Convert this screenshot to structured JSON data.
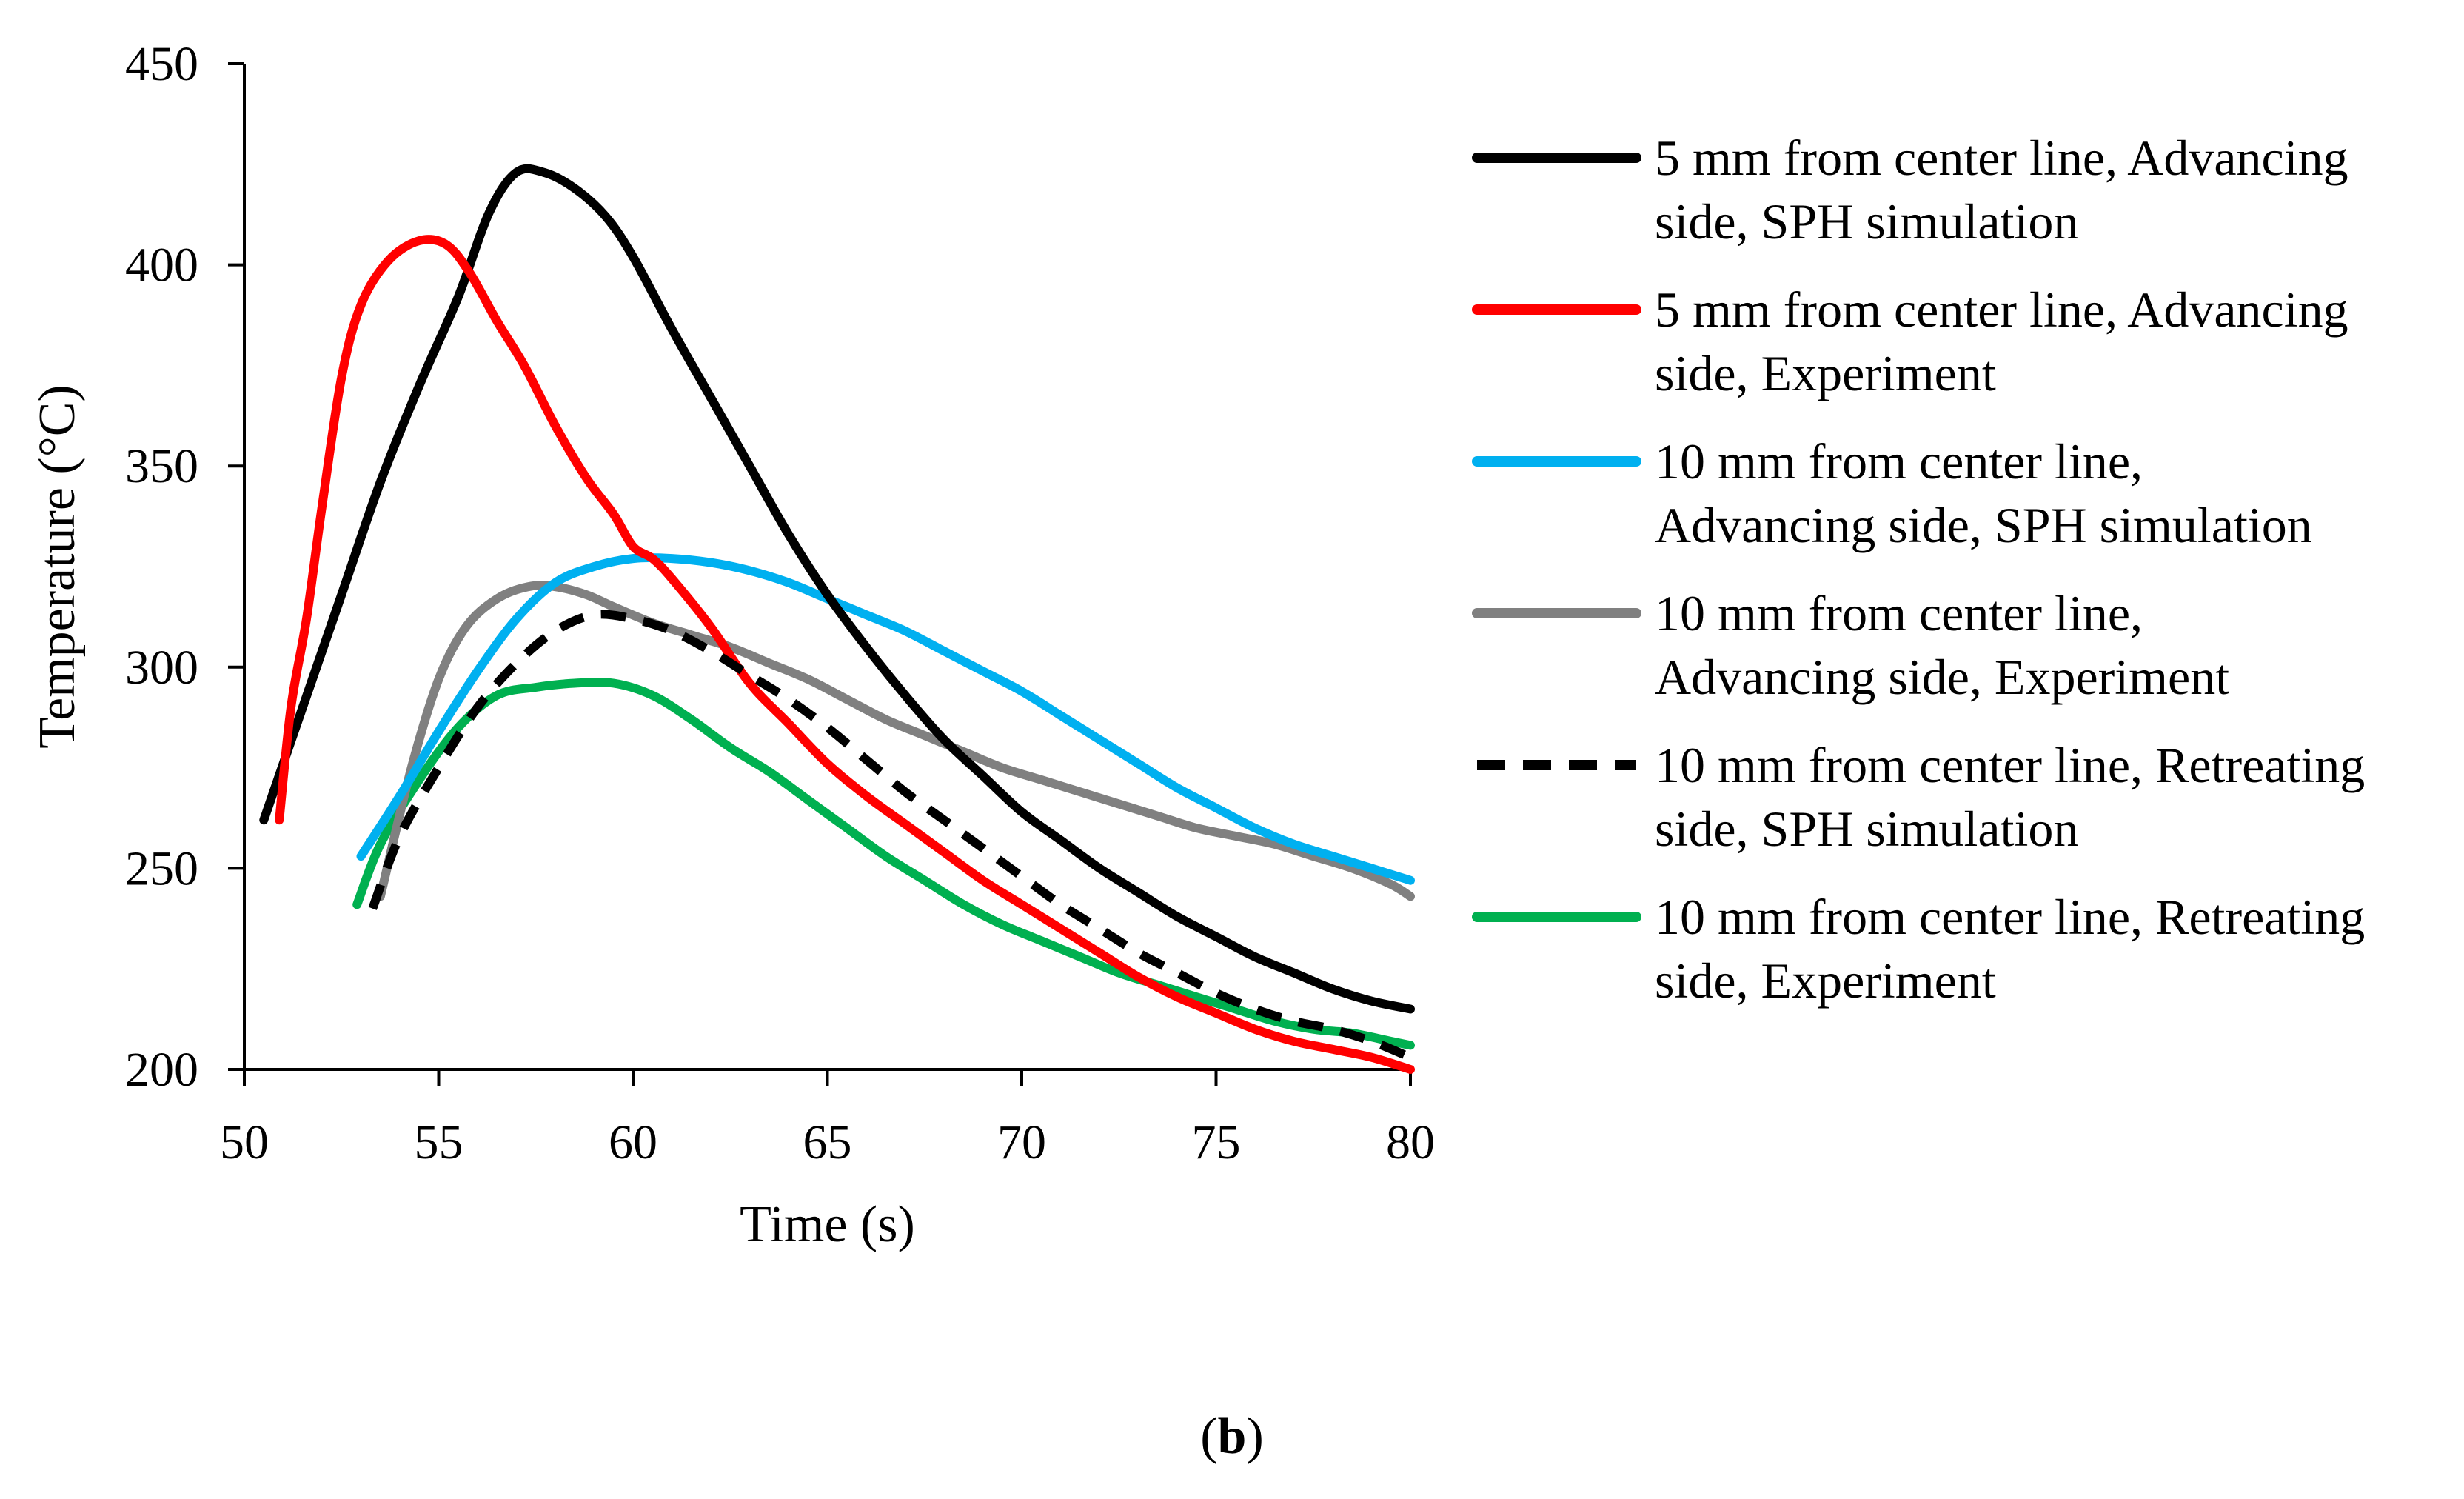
{
  "caption": {
    "open": "(",
    "letter": "b",
    "close": ")"
  },
  "chart_data": {
    "type": "line",
    "title": "",
    "xlabel": "Time (s)",
    "ylabel": "Temperature (°C)",
    "xlim": [
      50,
      80
    ],
    "ylim": [
      200,
      450
    ],
    "xticks": [
      50,
      55,
      60,
      65,
      70,
      75,
      80
    ],
    "yticks": [
      200,
      250,
      300,
      350,
      400,
      450
    ],
    "grid": false,
    "legend_position": "right",
    "series": [
      {
        "name": "5 mm from center line, Advancing side, SPH simulation",
        "legend_lines": [
          "5 mm from center line, Advancing",
          "side, SPH simulation"
        ],
        "color": "#000000",
        "dash": "solid",
        "x": [
          50.5,
          51.5,
          52.5,
          53.5,
          54.5,
          55.5,
          56.3,
          57.0,
          57.7,
          58.5,
          59.3,
          60.0,
          61.0,
          62.0,
          63.0,
          64.0,
          65.0,
          66.0,
          67.0,
          68.0,
          69.0,
          70.0,
          71.0,
          72.0,
          73.0,
          74.0,
          75.0,
          76.0,
          77.0,
          78.0,
          79.0,
          80.0
        ],
        "y": [
          262,
          290,
          318,
          346,
          370,
          392,
          413,
          423,
          423,
          419,
          412,
          402,
          384,
          367,
          350,
          333,
          318,
          305,
          293,
          282,
          273,
          264,
          257,
          250,
          244,
          238,
          233,
          228,
          224,
          220,
          217,
          215
        ]
      },
      {
        "name": "5 mm from center line, Advancing side, Experiment",
        "legend_lines": [
          "5 mm from center line, Advancing",
          "side, Experiment"
        ],
        "color": "#ff0000",
        "dash": "solid",
        "x": [
          50.9,
          51.2,
          51.6,
          52.0,
          52.5,
          53.0,
          53.7,
          54.5,
          55.2,
          55.8,
          56.5,
          57.2,
          58.0,
          58.8,
          59.5,
          60.0,
          60.5,
          61.0,
          62.0,
          63.0,
          64.0,
          65.0,
          66.0,
          67.0,
          68.0,
          69.0,
          70.0,
          71.0,
          72.0,
          73.0,
          74.0,
          75.0,
          76.0,
          77.0,
          78.0,
          79.0,
          80.0
        ],
        "y": [
          262,
          290,
          312,
          340,
          372,
          390,
          401,
          406,
          405,
          398,
          386,
          375,
          360,
          347,
          338,
          330,
          327,
          322,
          310,
          296,
          286,
          276,
          268,
          261,
          254,
          247,
          241,
          235,
          229,
          223,
          218,
          214,
          210,
          207,
          205,
          203,
          200
        ]
      },
      {
        "name": "10 mm from center line, Advancing side, SPH simulation",
        "legend_lines": [
          "10 mm from center line,",
          "Advancing side, SPH simulation"
        ],
        "color": "#00b0f0",
        "dash": "solid",
        "x": [
          53.0,
          54.0,
          55.0,
          56.0,
          57.0,
          58.0,
          59.0,
          60.0,
          61.0,
          62.0,
          63.0,
          64.0,
          65.0,
          66.0,
          67.0,
          68.0,
          69.0,
          70.0,
          71.0,
          72.0,
          73.0,
          74.0,
          75.0,
          76.0,
          77.0,
          78.0,
          79.0,
          80.0
        ],
        "y": [
          253,
          268,
          284,
          299,
          312,
          321,
          325,
          327,
          327,
          326,
          324,
          321,
          317,
          313,
          309,
          304,
          299,
          294,
          288,
          282,
          276,
          270,
          265,
          260,
          256,
          253,
          250,
          247
        ]
      },
      {
        "name": "10 mm from center line, Advancing side, Experiment",
        "legend_lines": [
          "10 mm from center line,",
          "Advancing side, Experiment"
        ],
        "color": "#808080",
        "dash": "solid",
        "x": [
          53.5,
          54.3,
          55.0,
          55.7,
          56.5,
          57.3,
          58.0,
          58.8,
          59.5,
          60.5,
          61.5,
          62.5,
          63.5,
          64.5,
          65.5,
          66.5,
          67.5,
          68.5,
          69.5,
          70.5,
          71.5,
          72.5,
          73.5,
          74.5,
          75.5,
          76.5,
          77.5,
          78.5,
          79.5,
          80.0
        ],
        "y": [
          243,
          275,
          297,
          310,
          317,
          320,
          320,
          318,
          315,
          311,
          308,
          305,
          301,
          297,
          292,
          287,
          283,
          279,
          275,
          272,
          269,
          266,
          263,
          260,
          258,
          256,
          253,
          250,
          246,
          243
        ]
      },
      {
        "name": "10 mm from center line, Retreating side, SPH simulation",
        "legend_lines": [
          "10 mm from center line, Retreating",
          "side, SPH simulation"
        ],
        "color": "#000000",
        "dash": "dashed",
        "x": [
          53.3,
          54.0,
          55.0,
          56.0,
          57.0,
          58.0,
          59.0,
          60.0,
          61.0,
          62.0,
          63.0,
          64.0,
          65.0,
          66.0,
          67.0,
          68.0,
          69.0,
          70.0,
          71.0,
          72.0,
          73.0,
          74.0,
          75.0,
          76.0,
          77.0,
          78.0,
          79.0,
          80.0
        ],
        "y": [
          240,
          258,
          275,
          290,
          301,
          309,
          313,
          312,
          309,
          304,
          298,
          292,
          285,
          277,
          269,
          262,
          255,
          248,
          241,
          235,
          229,
          224,
          219,
          215,
          212,
          210,
          207,
          203
        ]
      },
      {
        "name": "10 mm from center line, Retreating side, Experiment",
        "legend_lines": [
          "10 mm from center line, Retreating",
          "side, Experiment"
        ],
        "color": "#00b050",
        "dash": "solid",
        "x": [
          52.9,
          53.5,
          54.5,
          55.5,
          56.5,
          57.5,
          58.5,
          59.5,
          60.5,
          61.5,
          62.5,
          63.5,
          64.5,
          65.5,
          66.5,
          67.5,
          68.5,
          69.5,
          70.5,
          71.5,
          72.5,
          73.5,
          74.5,
          75.5,
          76.5,
          77.5,
          78.5,
          79.5,
          80.0
        ],
        "y": [
          241,
          256,
          272,
          285,
          293,
          295,
          296,
          296,
          293,
          287,
          280,
          274,
          267,
          260,
          253,
          247,
          241,
          236,
          232,
          228,
          224,
          221,
          218,
          215,
          212,
          210,
          209,
          207,
          206
        ]
      }
    ]
  }
}
